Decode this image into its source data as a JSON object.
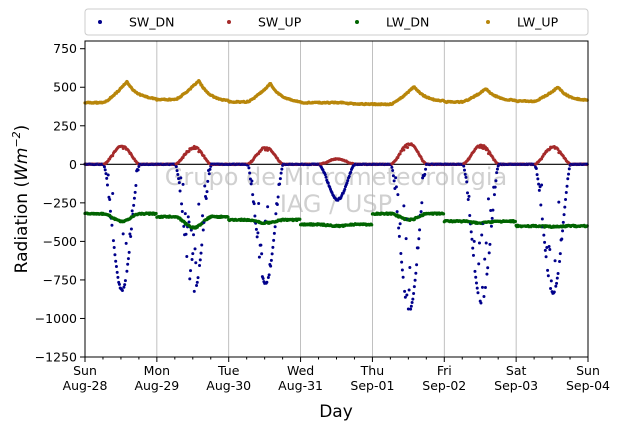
{
  "chart_data": {
    "type": "scatter",
    "xlabel": "Day",
    "ylabel_prefix": "Radiation (",
    "ylabel_unit": "Wm",
    "ylabel_exp": "−2",
    "ylabel_suffix": ")",
    "ylim": [
      -1250,
      800
    ],
    "yticks": [
      750,
      500,
      250,
      0,
      -250,
      -500,
      -750,
      -1000,
      -1250
    ],
    "ytick_labels": [
      "750",
      "500",
      "250",
      "0",
      "−250",
      "−500",
      "−750",
      "−1000",
      "−1250"
    ],
    "xlim": [
      "2022-08-28",
      "2022-09-04"
    ],
    "xticks": [
      {
        "line1": "Sun",
        "line2": "Aug-28"
      },
      {
        "line1": "Mon",
        "line2": "Aug-29"
      },
      {
        "line1": "Tue",
        "line2": "Aug-30"
      },
      {
        "line1": "Wed",
        "line2": "Aug-31"
      },
      {
        "line1": "Thu",
        "line2": "Sep-01"
      },
      {
        "line1": "Fri",
        "line2": "Sep-02"
      },
      {
        "line1": "Sat",
        "line2": "Sep-03"
      },
      {
        "line1": "Sun",
        "line2": "Sep-04"
      }
    ],
    "grid": "vertical",
    "legend_position": "top",
    "watermark": [
      "Grupo de Micrometeorologia",
      "IAG / USP"
    ],
    "zero_line": 0,
    "series": [
      {
        "name": "SW_DN",
        "color": "#00008b",
        "daily_extreme": [
          -820,
          -830,
          -780,
          -230,
          -950,
          -900,
          -840
        ],
        "peak_hour": [
          13.0,
          13.0,
          13.0,
          13.0,
          12.8,
          13.0,
          13.0
        ]
      },
      {
        "name": "SW_UP",
        "color": "#a52a2a",
        "daily_extreme": [
          120,
          115,
          110,
          35,
          135,
          125,
          115
        ],
        "peak_hour": [
          13.0,
          13.0,
          13.0,
          13.0,
          12.8,
          13.0,
          13.0
        ]
      },
      {
        "name": "LW_DN",
        "color": "#006400",
        "base": [
          -320,
          -340,
          -360,
          -390,
          -320,
          -370,
          -400
        ],
        "daily_extreme": [
          -370,
          -410,
          -380,
          -400,
          -360,
          -380,
          -405
        ]
      },
      {
        "name": "LW_UP",
        "color": "#b8860b",
        "base": [
          400,
          420,
          405,
          400,
          390,
          405,
          410
        ],
        "daily_extreme": [
          535,
          545,
          525,
          400,
          505,
          490,
          500
        ]
      }
    ]
  }
}
